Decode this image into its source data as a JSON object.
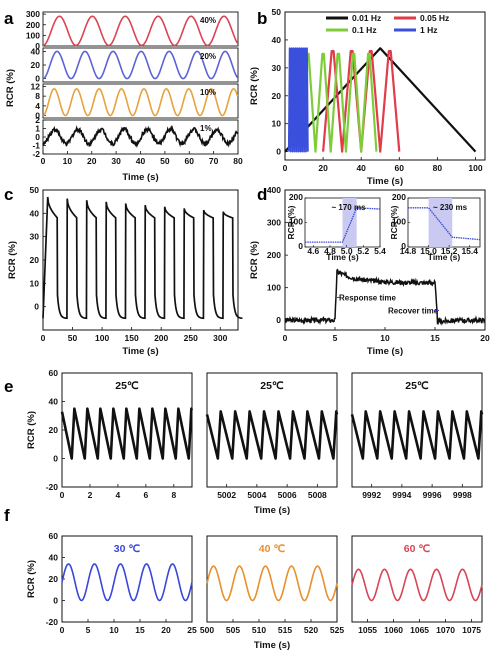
{
  "chart_data": [
    {
      "panel": "a",
      "type": "line",
      "xlabel": "Time (s)",
      "ylabel": "RCR (%)",
      "xlim": [
        0,
        80
      ],
      "xticks": [
        "0",
        "10",
        "20",
        "30",
        "40",
        "50",
        "60",
        "70",
        "80"
      ],
      "subplots": [
        {
          "name": "40%",
          "color": "#d94552",
          "ylim": [
            0,
            320
          ],
          "yticks": [
            "0",
            "100",
            "200",
            "300"
          ],
          "period": 13.5,
          "min": 5,
          "max": 280,
          "noise": 0
        },
        {
          "name": "20%",
          "color": "#5b63d6",
          "ylim": [
            -5,
            45
          ],
          "yticks": [
            "0",
            "20",
            "40"
          ],
          "period": 11.5,
          "min": 0,
          "max": 40,
          "noise": 0
        },
        {
          "name": "10%",
          "color": "#e8a23f",
          "ylim": [
            -1,
            13
          ],
          "yticks": [
            "0",
            "4",
            "8",
            "12"
          ],
          "period": 9.2,
          "min": 0,
          "max": 11,
          "noise": 0
        },
        {
          "name": "1%",
          "color": "#111111",
          "ylim": [
            -2,
            2
          ],
          "yticks": [
            "-2",
            "-1",
            "0",
            "1",
            "2"
          ],
          "period": 9.5,
          "min": -0.8,
          "max": 0.9,
          "noise": 0.25
        }
      ]
    },
    {
      "panel": "b",
      "type": "line",
      "xlabel": "Time (s)",
      "ylabel": "RCR (%)",
      "xlim": [
        0,
        105
      ],
      "ylim": [
        -3,
        50
      ],
      "xticks": [
        "0",
        "20",
        "40",
        "60",
        "80",
        "100"
      ],
      "yticks": [
        "0",
        "10",
        "20",
        "30",
        "40",
        "50"
      ],
      "legend": "top",
      "series": [
        {
          "name": "0.01 Hz",
          "color": "#111111",
          "x": [
            0,
            50,
            100
          ],
          "y": [
            0,
            37,
            0
          ]
        },
        {
          "name": "0.05 Hz",
          "color": "#e03c4a",
          "cycles": 4,
          "start": 20,
          "period": 10,
          "peak": 36
        },
        {
          "name": "0.1 Hz",
          "color": "#7fcc3a",
          "cycles": 5,
          "start": 8,
          "period": 8,
          "peak": 35
        },
        {
          "name": "1 Hz",
          "color": "#3a4fdc",
          "cycles": 10,
          "start": 2,
          "period": 1,
          "peak": 37
        }
      ]
    },
    {
      "panel": "c",
      "type": "line",
      "xlabel": "Time (s)",
      "ylabel": "RCR (%)",
      "xlim": [
        0,
        330
      ],
      "ylim": [
        -10,
        50
      ],
      "xticks": [
        "0",
        "50",
        "100",
        "150",
        "200",
        "250",
        "300"
      ],
      "yticks": [
        "0",
        "10",
        "20",
        "30",
        "40",
        "50"
      ],
      "series": [
        {
          "name": "",
          "color": "#111111",
          "period": 33,
          "cycles": 10,
          "on_start": 47,
          "on_end": 38,
          "off_level": -5
        }
      ]
    },
    {
      "panel": "d",
      "type": "line",
      "xlabel": "Time (s)",
      "ylabel": "RCR (%)",
      "xlim": [
        0,
        20
      ],
      "ylim": [
        -30,
        400
      ],
      "xticks": [
        "0",
        "5",
        "10",
        "15",
        "20"
      ],
      "yticks": [
        "0",
        "100",
        "200",
        "300",
        "400"
      ],
      "series": [
        {
          "name": "",
          "color": "#111111",
          "x": [
            0,
            5,
            5.2,
            6,
            10,
            15,
            15.2,
            16,
            20
          ],
          "y": [
            0,
            0,
            150,
            130,
            120,
            115,
            10,
            0,
            0
          ]
        }
      ],
      "annotations": {
        "response": "Response time",
        "recover": "Recover time"
      },
      "insets": [
        {
          "label": "~ 170 ms",
          "xlabel": "Time (s)",
          "ylabel": "RCR (%)",
          "xlim": [
            4.5,
            5.4
          ],
          "ylim": [
            0,
            200
          ],
          "xticks": [
            "4.6",
            "4.8",
            "5.0",
            "5.2",
            "5.4"
          ],
          "yticks": [
            "0",
            "100",
            "200"
          ],
          "highlight": [
            4.95,
            5.12
          ],
          "x": [
            4.5,
            4.95,
            5.12,
            5.4
          ],
          "y": [
            20,
            20,
            160,
            155
          ]
        },
        {
          "label": "~ 230 ms",
          "xlabel": "Time (s)",
          "ylabel": "RCR (%)",
          "xlim": [
            14.8,
            15.5
          ],
          "ylim": [
            0,
            200
          ],
          "xticks": [
            "14.8",
            "15.0",
            "15.2",
            "15.4"
          ],
          "yticks": [
            "0",
            "100",
            "200"
          ],
          "highlight": [
            15.0,
            15.23
          ],
          "x": [
            14.8,
            15.0,
            15.23,
            15.5
          ],
          "y": [
            160,
            160,
            40,
            30
          ]
        }
      ]
    },
    {
      "panel": "e",
      "type": "line",
      "ylabel": "RCR (%)",
      "xlabel": "Time (s)",
      "ylim": [
        -20,
        60
      ],
      "yticks": [
        "-20",
        "0",
        "20",
        "40",
        "60"
      ],
      "subplots": [
        {
          "title": "25℃",
          "color": "#111111",
          "xlim": [
            0,
            9.3
          ],
          "x0": 0,
          "xticks": [
            "0",
            "2",
            "4",
            "6",
            "8"
          ],
          "tickvals": [
            0,
            2,
            4,
            6,
            8
          ],
          "cycles": 10,
          "max": 35,
          "min": 0
        },
        {
          "title": "25℃",
          "color": "#111111",
          "xlim": [
            5000.7,
            5009.3
          ],
          "x0": 5000.7,
          "xticks": [
            "5002",
            "5004",
            "5006",
            "5008"
          ],
          "tickvals": [
            5002,
            5004,
            5006,
            5008
          ],
          "cycles": 9,
          "max": 33,
          "min": 0
        },
        {
          "title": "25℃",
          "color": "#111111",
          "xlim": [
            9990.7,
            9999.3
          ],
          "x0": 9990.7,
          "xticks": [
            "9992",
            "9994",
            "9996",
            "9998"
          ],
          "tickvals": [
            9992,
            9994,
            9996,
            9998
          ],
          "cycles": 9,
          "max": 33,
          "min": 0
        }
      ]
    },
    {
      "panel": "f",
      "type": "line",
      "ylabel": "RCR (%)",
      "xlabel": "Time (s)",
      "ylim": [
        -20,
        60
      ],
      "yticks": [
        "-20",
        "0",
        "20",
        "40",
        "60"
      ],
      "subplots": [
        {
          "title": "30 ℃",
          "color": "#3a48d6",
          "xlim": [
            0,
            25
          ],
          "x0": 0,
          "xticks": [
            "0",
            "5",
            "10",
            "15",
            "20",
            "25"
          ],
          "tickvals": [
            0,
            5,
            10,
            15,
            20,
            25
          ],
          "cycles": 5,
          "max": 34,
          "min": 0
        },
        {
          "title": "40 ℃",
          "color": "#e8902c",
          "xlim": [
            500,
            525
          ],
          "x0": 500,
          "xticks": [
            "500",
            "505",
            "510",
            "515",
            "520",
            "525"
          ],
          "tickvals": [
            500,
            505,
            510,
            515,
            520,
            525
          ],
          "cycles": 5,
          "max": 32,
          "min": 0
        },
        {
          "title": "60 ℃",
          "color": "#d94557",
          "xlim": [
            1052,
            1077
          ],
          "x0": 1052,
          "xticks": [
            "1055",
            "1060",
            "1065",
            "1070",
            "1075"
          ],
          "tickvals": [
            1055,
            1060,
            1065,
            1070,
            1075
          ],
          "cycles": 5,
          "max": 29,
          "min": 0
        }
      ]
    }
  ]
}
